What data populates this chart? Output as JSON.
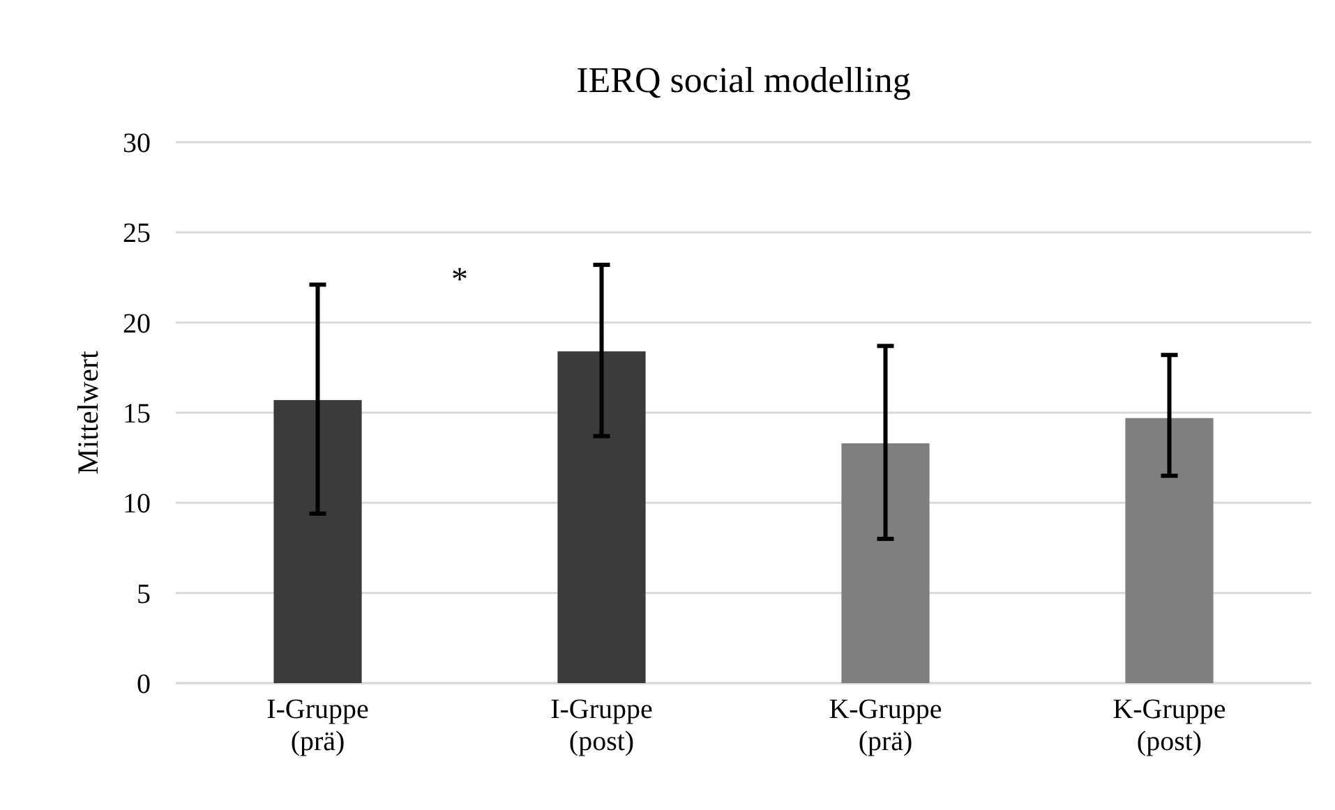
{
  "chart_data": {
    "type": "bar",
    "title": "IERQ social modelling",
    "ylabel": "Mittelwert",
    "categories": [
      "I-Gruppe\n(prä)",
      "I-Gruppe\n(post)",
      "K-Gruppe\n(prä)",
      "K-Gruppe\n(post)"
    ],
    "values": [
      15.7,
      18.4,
      13.3,
      14.7
    ],
    "colors": [
      "#3b3b3b",
      "#3b3b3b",
      "#7f7f7f",
      "#7f7f7f"
    ],
    "errors": [
      [
        9.4,
        22.1
      ],
      [
        13.7,
        23.2
      ],
      [
        8.0,
        18.7
      ],
      [
        11.5,
        18.2
      ]
    ],
    "annotations": [
      "*"
    ],
    "ylim": [
      0,
      30
    ],
    "yticks": [
      0,
      5,
      10,
      15,
      20,
      25,
      30
    ],
    "grid": "y"
  }
}
